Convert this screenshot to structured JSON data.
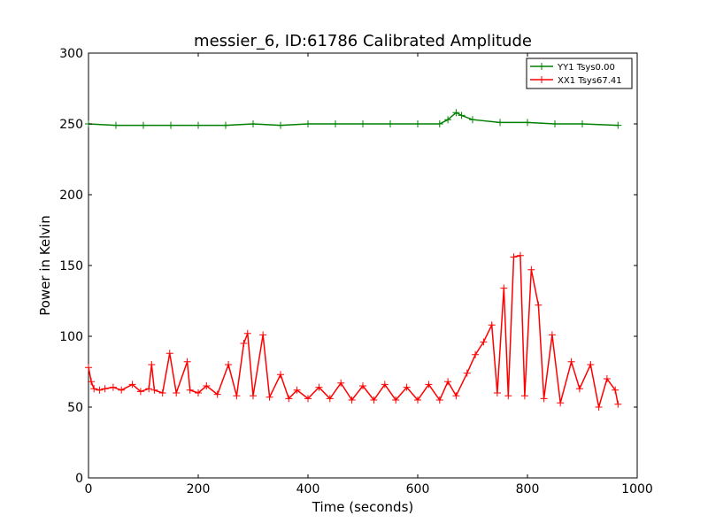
{
  "chart_data": {
    "type": "line",
    "title": "messier_6, ID:61786 Calibrated Amplitude",
    "xlabel": "Time (seconds)",
    "ylabel": "Power in Kelvin",
    "xlim": [
      0,
      1000
    ],
    "ylim": [
      0,
      300
    ],
    "xticks": [
      "0",
      "200",
      "400",
      "600",
      "800",
      "1000"
    ],
    "yticks": [
      "0",
      "50",
      "100",
      "150",
      "200",
      "250",
      "300"
    ],
    "grid": false,
    "legend_position": "top-right",
    "marker": "plus",
    "series": [
      {
        "name": "YY1 Tsys0.00",
        "color": "#008000",
        "x": [
          0,
          50,
          100,
          150,
          200,
          250,
          300,
          350,
          400,
          450,
          500,
          550,
          600,
          640,
          655,
          670,
          680,
          700,
          750,
          800,
          850,
          900,
          965
        ],
        "y": [
          250,
          249,
          249,
          249,
          249,
          249,
          250,
          249,
          250,
          250,
          250,
          250,
          250,
          250,
          253,
          258,
          256,
          253,
          251,
          251,
          250,
          250,
          249
        ]
      },
      {
        "name": "XX1 Tsys67.41",
        "color": "#ff0000",
        "x": [
          0,
          5,
          10,
          20,
          30,
          45,
          60,
          80,
          95,
          110,
          115,
          120,
          135,
          148,
          160,
          180,
          185,
          200,
          215,
          235,
          255,
          270,
          283,
          290,
          300,
          318,
          330,
          350,
          365,
          380,
          400,
          420,
          440,
          460,
          480,
          500,
          520,
          540,
          560,
          580,
          600,
          620,
          640,
          655,
          670,
          690,
          705,
          720,
          735,
          745,
          757,
          765,
          775,
          787,
          795,
          807,
          820,
          830,
          845,
          860,
          880,
          895,
          915,
          930,
          945,
          960,
          965
        ],
        "y": [
          78,
          68,
          63,
          62,
          63,
          64,
          62,
          66,
          61,
          63,
          80,
          62,
          60,
          88,
          60,
          82,
          62,
          60,
          65,
          59,
          80,
          58,
          95,
          102,
          58,
          101,
          57,
          73,
          56,
          62,
          56,
          64,
          56,
          67,
          55,
          65,
          55,
          66,
          55,
          64,
          55,
          66,
          55,
          68,
          58,
          74,
          87,
          96,
          108,
          60,
          134,
          58,
          156,
          157,
          58,
          147,
          122,
          56,
          101,
          53,
          82,
          63,
          80,
          50,
          70,
          62,
          52
        ]
      }
    ]
  }
}
